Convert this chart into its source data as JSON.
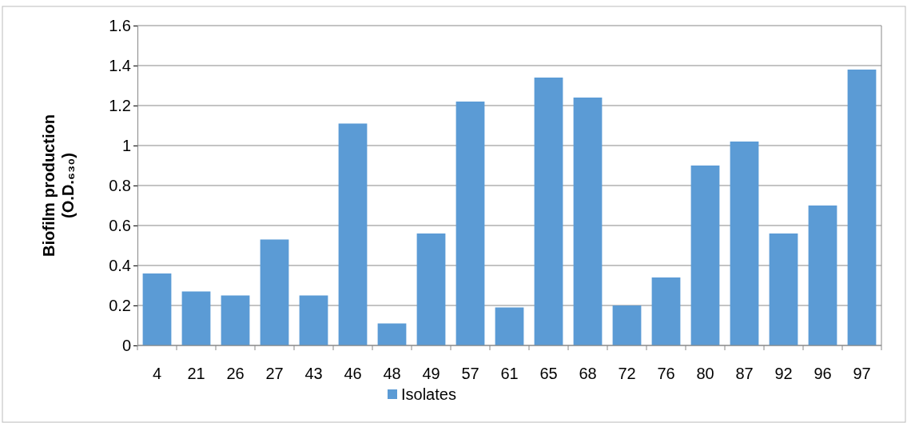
{
  "chart_data": {
    "type": "bar",
    "ylabel": "Biofilm production\n(O.D.₆₃₀)",
    "categories": [
      "4",
      "21",
      "26",
      "27",
      "43",
      "46",
      "48",
      "49",
      "57",
      "61",
      "65",
      "68",
      "72",
      "76",
      "80",
      "87",
      "92",
      "96",
      "97"
    ],
    "series": [
      {
        "name": "Isolates",
        "color": "#5b9bd5",
        "values": [
          0.36,
          0.27,
          0.25,
          0.53,
          0.25,
          1.11,
          0.11,
          0.56,
          1.22,
          0.19,
          1.34,
          1.24,
          0.2,
          0.34,
          0.9,
          1.02,
          0.56,
          0.7,
          1.38
        ]
      }
    ],
    "ylim": [
      0,
      1.6
    ],
    "yticks": [
      0,
      0.2,
      0.4,
      0.6,
      0.8,
      1,
      1.2,
      1.4,
      1.6
    ],
    "grid": "y",
    "legend": "bottom"
  }
}
